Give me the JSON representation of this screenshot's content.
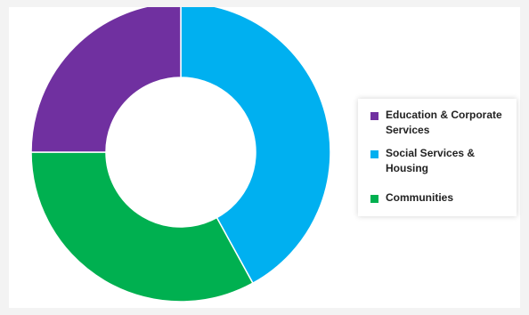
{
  "chart_data": {
    "type": "pie",
    "donut": true,
    "categories": [
      "Education & Corporate Services",
      "Social Services & Housing",
      "Communities"
    ],
    "values": [
      25,
      42,
      33
    ],
    "colors": [
      "#7030a0",
      "#00b0f0",
      "#00b050"
    ],
    "title": "",
    "legend_position": "right"
  }
}
